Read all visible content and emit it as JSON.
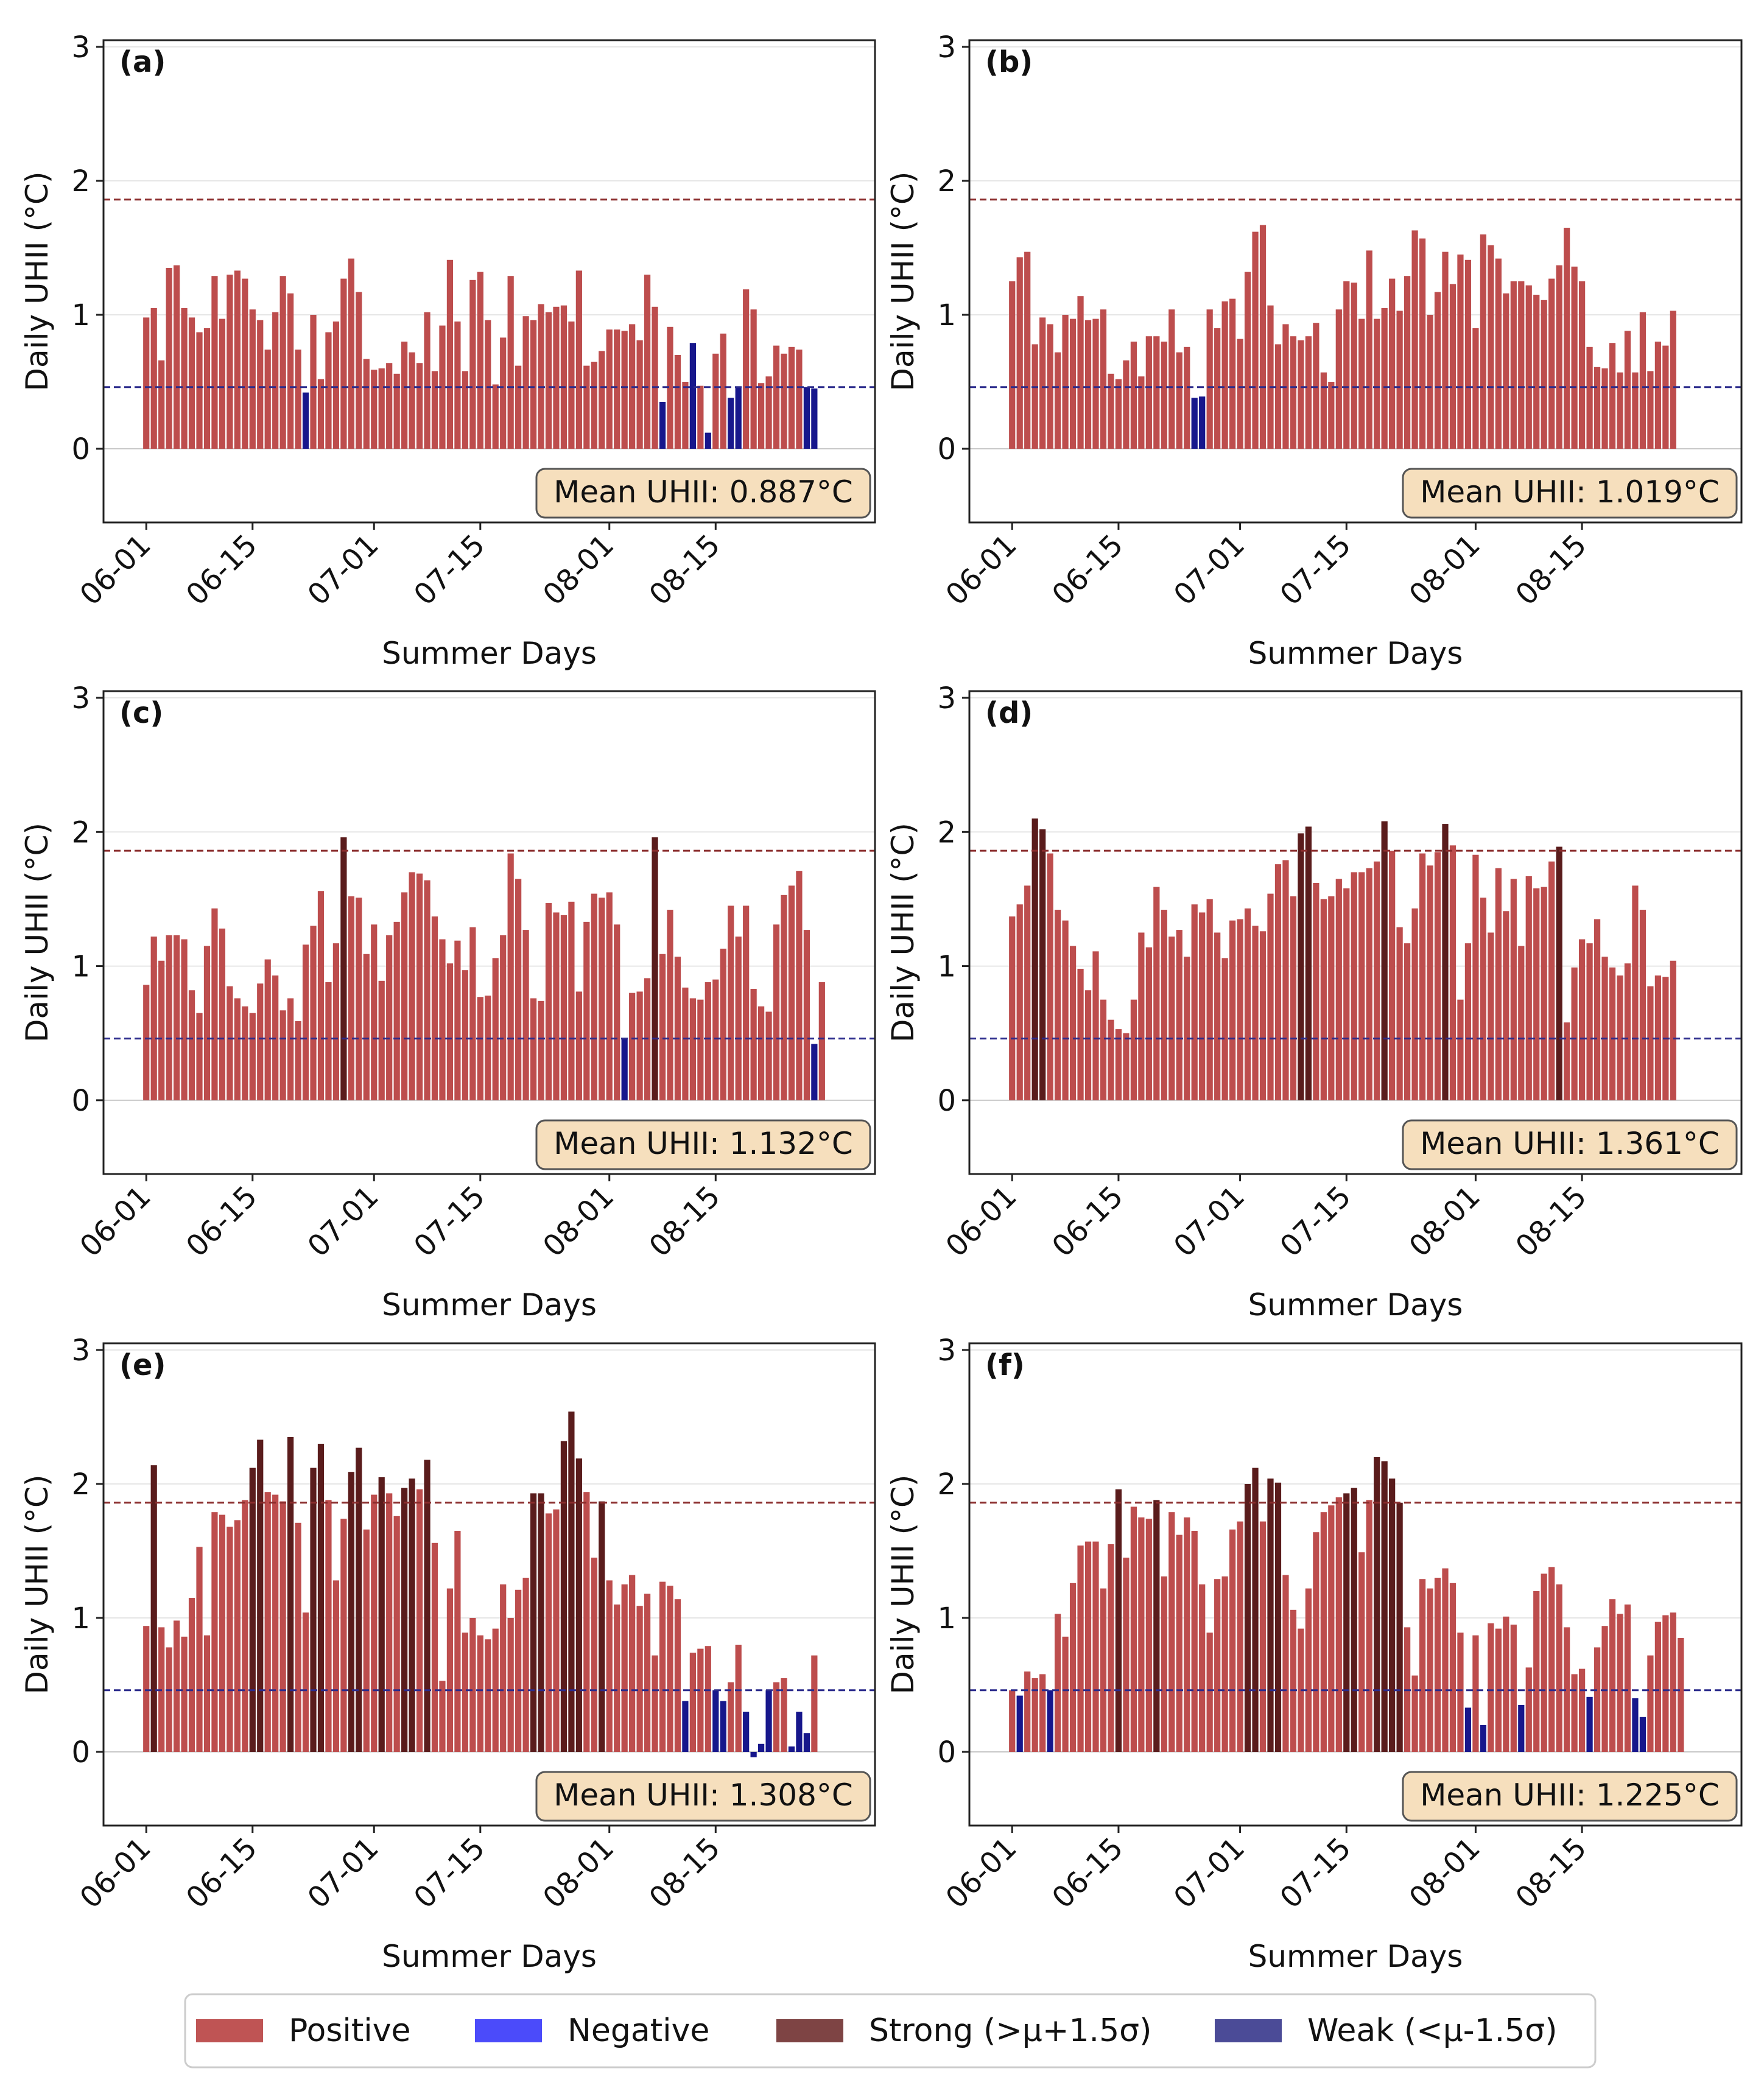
{
  "figure": {
    "legend": [
      {
        "label": "Positive",
        "color": "#bf5454"
      },
      {
        "label": "Negative",
        "color": "#4b4bfa"
      },
      {
        "label": "Strong (>μ+1.5σ)",
        "color": "#7e4444"
      },
      {
        "label": "Weak (<μ-1.5σ)",
        "color": "#4b4b97"
      }
    ],
    "colors": {
      "positive": "#bd4d4d",
      "strong": "#5a1c1c",
      "weak": "#17178c",
      "upper_line": "#8b2d2d",
      "lower_line": "#2b2b8c",
      "badge_fill": "#f6dfbd",
      "badge_stroke": "#555555"
    }
  },
  "chart_data": [
    {
      "type": "bar",
      "panel": "(a)",
      "xlabel": "Summer Days",
      "ylabel": "Daily UHII (°C)",
      "ylim": [
        -0.55,
        3.05
      ],
      "yticks": [
        0,
        1,
        2,
        3
      ],
      "xticks": [
        {
          "day": 0,
          "label": "06-01"
        },
        {
          "day": 14,
          "label": "06-15"
        },
        {
          "day": 30,
          "label": "07-01"
        },
        {
          "day": 44,
          "label": "07-15"
        },
        {
          "day": 61,
          "label": "08-01"
        },
        {
          "day": 75,
          "label": "08-15"
        }
      ],
      "upper_threshold": 1.86,
      "lower_threshold": 0.46,
      "annotation": "Mean UHII: 0.887°C",
      "values": [
        0.98,
        1.05,
        0.66,
        1.35,
        1.37,
        1.05,
        0.98,
        0.87,
        0.9,
        1.29,
        0.97,
        1.3,
        1.33,
        1.27,
        1.04,
        0.96,
        0.74,
        1.02,
        1.29,
        1.16,
        0.74,
        0.42,
        1.0,
        0.52,
        0.87,
        0.95,
        1.27,
        1.42,
        1.17,
        0.67,
        0.59,
        0.6,
        0.64,
        0.56,
        0.8,
        0.72,
        0.64,
        1.02,
        0.58,
        0.92,
        1.41,
        0.95,
        0.58,
        1.26,
        1.32,
        0.96,
        0.48,
        0.83,
        1.29,
        0.62,
        0.99,
        0.96,
        1.08,
        1.02,
        1.06,
        1.07,
        0.95,
        1.33,
        0.62,
        0.65,
        0.73,
        0.89,
        0.89,
        0.88,
        0.93,
        0.81,
        1.3,
        1.06,
        0.35,
        0.91,
        0.7,
        0.5,
        0.79,
        0.47,
        0.12,
        0.71,
        0.86,
        0.38,
        0.46,
        1.19,
        1.04,
        0.49,
        0.54,
        0.77,
        0.71,
        0.76,
        0.74,
        0.46,
        0.45
      ],
      "categories": [
        "p",
        "p",
        "p",
        "p",
        "p",
        "p",
        "p",
        "p",
        "p",
        "p",
        "p",
        "p",
        "p",
        "p",
        "p",
        "p",
        "p",
        "p",
        "p",
        "p",
        "p",
        "w",
        "p",
        "p",
        "p",
        "p",
        "p",
        "p",
        "p",
        "p",
        "p",
        "p",
        "p",
        "p",
        "p",
        "p",
        "p",
        "p",
        "p",
        "p",
        "p",
        "p",
        "p",
        "p",
        "p",
        "p",
        "p",
        "p",
        "p",
        "p",
        "p",
        "p",
        "p",
        "p",
        "p",
        "p",
        "p",
        "p",
        "p",
        "p",
        "p",
        "p",
        "p",
        "p",
        "p",
        "p",
        "p",
        "p",
        "w",
        "p",
        "p",
        "p",
        "w",
        "p",
        "w",
        "p",
        "p",
        "w",
        "w",
        "p",
        "p",
        "p",
        "p",
        "p",
        "p",
        "p",
        "p",
        "w",
        "w"
      ]
    },
    {
      "type": "bar",
      "panel": "(b)",
      "xlabel": "Summer Days",
      "ylabel": "Daily UHII (°C)",
      "ylim": [
        -0.55,
        3.05
      ],
      "yticks": [
        0,
        1,
        2,
        3
      ],
      "xticks": [
        {
          "day": 0,
          "label": "06-01"
        },
        {
          "day": 14,
          "label": "06-15"
        },
        {
          "day": 30,
          "label": "07-01"
        },
        {
          "day": 44,
          "label": "07-15"
        },
        {
          "day": 61,
          "label": "08-01"
        },
        {
          "day": 75,
          "label": "08-15"
        }
      ],
      "upper_threshold": 1.86,
      "lower_threshold": 0.46,
      "annotation": "Mean UHII: 1.019°C",
      "values": [
        1.25,
        1.43,
        1.47,
        0.78,
        0.98,
        0.93,
        0.72,
        1.0,
        0.97,
        1.14,
        0.96,
        0.97,
        1.04,
        0.56,
        0.52,
        0.66,
        0.8,
        0.54,
        0.84,
        0.84,
        0.8,
        1.04,
        0.72,
        0.76,
        0.38,
        0.39,
        1.04,
        0.9,
        1.1,
        1.12,
        0.82,
        1.32,
        1.62,
        1.67,
        1.07,
        0.78,
        0.93,
        0.84,
        0.81,
        0.84,
        0.94,
        0.57,
        0.5,
        1.04,
        1.25,
        1.24,
        0.97,
        1.48,
        0.97,
        1.05,
        1.27,
        1.03,
        1.29,
        1.63,
        1.57,
        1.0,
        1.17,
        1.47,
        1.23,
        1.45,
        1.41,
        0.9,
        1.6,
        1.52,
        1.42,
        1.16,
        1.25,
        1.25,
        1.22,
        1.15,
        1.11,
        1.27,
        1.37,
        1.65,
        1.36,
        1.25,
        0.76,
        0.61,
        0.6,
        0.79,
        0.57,
        0.88,
        0.57,
        1.02,
        0.58,
        0.8,
        0.77,
        1.03
      ],
      "categories": [
        "p",
        "p",
        "p",
        "p",
        "p",
        "p",
        "p",
        "p",
        "p",
        "p",
        "p",
        "p",
        "p",
        "p",
        "p",
        "p",
        "p",
        "p",
        "p",
        "p",
        "p",
        "p",
        "p",
        "p",
        "w",
        "w",
        "p",
        "p",
        "p",
        "p",
        "p",
        "p",
        "p",
        "p",
        "p",
        "p",
        "p",
        "p",
        "p",
        "p",
        "p",
        "p",
        "p",
        "p",
        "p",
        "p",
        "p",
        "p",
        "p",
        "p",
        "p",
        "p",
        "p",
        "p",
        "p",
        "p",
        "p",
        "p",
        "p",
        "p",
        "p",
        "p",
        "p",
        "p",
        "p",
        "p",
        "p",
        "p",
        "p",
        "p",
        "p",
        "p",
        "p",
        "p",
        "p",
        "p",
        "p",
        "p",
        "p",
        "p",
        "p",
        "p",
        "p",
        "p",
        "p",
        "p",
        "p",
        "p"
      ]
    },
    {
      "type": "bar",
      "panel": "(c)",
      "xlabel": "Summer Days",
      "ylabel": "Daily UHII (°C)",
      "ylim": [
        -0.55,
        3.05
      ],
      "yticks": [
        0,
        1,
        2,
        3
      ],
      "xticks": [
        {
          "day": 0,
          "label": "06-01"
        },
        {
          "day": 14,
          "label": "06-15"
        },
        {
          "day": 30,
          "label": "07-01"
        },
        {
          "day": 44,
          "label": "07-15"
        },
        {
          "day": 61,
          "label": "08-01"
        },
        {
          "day": 75,
          "label": "08-15"
        }
      ],
      "upper_threshold": 1.86,
      "lower_threshold": 0.46,
      "annotation": "Mean UHII: 1.132°C",
      "values": [
        0.86,
        1.22,
        1.04,
        1.23,
        1.23,
        1.2,
        0.82,
        0.65,
        1.15,
        1.43,
        1.28,
        0.85,
        0.76,
        0.7,
        0.65,
        0.87,
        1.05,
        0.93,
        0.67,
        0.76,
        0.59,
        1.16,
        1.3,
        1.56,
        0.88,
        1.17,
        1.96,
        1.52,
        1.51,
        1.09,
        1.31,
        0.89,
        1.23,
        1.33,
        1.55,
        1.7,
        1.69,
        1.64,
        1.37,
        1.2,
        1.02,
        1.19,
        0.97,
        1.29,
        0.77,
        0.78,
        1.06,
        1.23,
        1.84,
        1.65,
        1.27,
        0.76,
        0.74,
        1.47,
        1.4,
        1.38,
        1.48,
        0.81,
        1.33,
        1.54,
        1.51,
        1.55,
        1.31,
        0.46,
        0.8,
        0.81,
        0.91,
        1.96,
        1.09,
        1.42,
        1.07,
        0.84,
        0.76,
        0.75,
        0.88,
        0.9,
        1.13,
        1.45,
        1.22,
        1.45,
        0.83,
        0.7,
        0.66,
        1.31,
        1.53,
        1.6,
        1.71,
        1.27,
        0.42,
        0.88
      ],
      "categories": [
        "p",
        "p",
        "p",
        "p",
        "p",
        "p",
        "p",
        "p",
        "p",
        "p",
        "p",
        "p",
        "p",
        "p",
        "p",
        "p",
        "p",
        "p",
        "p",
        "p",
        "p",
        "p",
        "p",
        "p",
        "p",
        "p",
        "s",
        "p",
        "p",
        "p",
        "p",
        "p",
        "p",
        "p",
        "p",
        "p",
        "p",
        "p",
        "p",
        "p",
        "p",
        "p",
        "p",
        "p",
        "p",
        "p",
        "p",
        "p",
        "p",
        "p",
        "p",
        "p",
        "p",
        "p",
        "p",
        "p",
        "p",
        "p",
        "p",
        "p",
        "p",
        "p",
        "p",
        "w",
        "p",
        "p",
        "p",
        "s",
        "p",
        "p",
        "p",
        "p",
        "p",
        "p",
        "p",
        "p",
        "p",
        "p",
        "p",
        "p",
        "p",
        "p",
        "p",
        "p",
        "p",
        "p",
        "p",
        "p",
        "w",
        "p"
      ]
    },
    {
      "type": "bar",
      "panel": "(d)",
      "xlabel": "Summer Days",
      "ylabel": "Daily UHII (°C)",
      "ylim": [
        -0.55,
        3.05
      ],
      "yticks": [
        0,
        1,
        2,
        3
      ],
      "xticks": [
        {
          "day": 0,
          "label": "06-01"
        },
        {
          "day": 14,
          "label": "06-15"
        },
        {
          "day": 30,
          "label": "07-01"
        },
        {
          "day": 44,
          "label": "07-15"
        },
        {
          "day": 61,
          "label": "08-01"
        },
        {
          "day": 75,
          "label": "08-15"
        }
      ],
      "upper_threshold": 1.86,
      "lower_threshold": 0.46,
      "annotation": "Mean UHII: 1.361°C",
      "values": [
        1.37,
        1.46,
        1.6,
        2.1,
        2.02,
        1.84,
        1.42,
        1.34,
        1.15,
        0.98,
        0.82,
        1.11,
        0.75,
        0.6,
        0.53,
        0.5,
        0.75,
        1.25,
        1.14,
        1.59,
        1.42,
        1.22,
        1.27,
        1.07,
        1.46,
        1.4,
        1.5,
        1.25,
        1.06,
        1.34,
        1.35,
        1.43,
        1.3,
        1.26,
        1.54,
        1.76,
        1.79,
        1.52,
        1.99,
        2.04,
        1.62,
        1.5,
        1.52,
        1.65,
        1.58,
        1.7,
        1.7,
        1.73,
        1.78,
        2.08,
        1.86,
        1.29,
        1.17,
        1.43,
        1.84,
        1.75,
        1.85,
        2.06,
        1.9,
        0.75,
        1.17,
        1.83,
        1.51,
        1.25,
        1.73,
        1.41,
        1.65,
        1.15,
        1.67,
        1.58,
        1.59,
        1.78,
        1.89,
        0.58,
        0.99,
        1.2,
        1.17,
        1.35,
        1.07,
        0.99,
        0.93,
        1.02,
        1.6,
        1.42,
        0.85,
        0.93,
        0.92,
        1.04
      ],
      "categories": [
        "p",
        "p",
        "p",
        "s",
        "s",
        "p",
        "p",
        "p",
        "p",
        "p",
        "p",
        "p",
        "p",
        "p",
        "p",
        "p",
        "p",
        "p",
        "p",
        "p",
        "p",
        "p",
        "p",
        "p",
        "p",
        "p",
        "p",
        "p",
        "p",
        "p",
        "p",
        "p",
        "p",
        "p",
        "p",
        "p",
        "p",
        "p",
        "s",
        "s",
        "p",
        "p",
        "p",
        "p",
        "p",
        "p",
        "p",
        "p",
        "p",
        "s",
        "p",
        "p",
        "p",
        "p",
        "p",
        "p",
        "p",
        "s",
        "p",
        "p",
        "p",
        "p",
        "p",
        "p",
        "p",
        "p",
        "p",
        "p",
        "p",
        "p",
        "p",
        "p",
        "s",
        "p",
        "p",
        "p",
        "p",
        "p",
        "p",
        "p",
        "p",
        "p",
        "p",
        "p",
        "p",
        "p",
        "p",
        "p"
      ]
    },
    {
      "type": "bar",
      "panel": "(e)",
      "xlabel": "Summer Days",
      "ylabel": "Daily UHII (°C)",
      "ylim": [
        -0.55,
        3.05
      ],
      "yticks": [
        0,
        1,
        2,
        3
      ],
      "xticks": [
        {
          "day": 0,
          "label": "06-01"
        },
        {
          "day": 14,
          "label": "06-15"
        },
        {
          "day": 30,
          "label": "07-01"
        },
        {
          "day": 44,
          "label": "07-15"
        },
        {
          "day": 61,
          "label": "08-01"
        },
        {
          "day": 75,
          "label": "08-15"
        }
      ],
      "upper_threshold": 1.86,
      "lower_threshold": 0.46,
      "annotation": "Mean UHII: 1.308°C",
      "values": [
        0.94,
        2.14,
        0.93,
        0.78,
        0.98,
        0.86,
        1.15,
        1.53,
        0.87,
        1.79,
        1.77,
        1.68,
        1.73,
        1.88,
        2.12,
        2.33,
        1.94,
        1.92,
        1.87,
        2.35,
        1.71,
        1.04,
        2.12,
        2.3,
        1.88,
        1.28,
        1.74,
        2.09,
        2.27,
        1.66,
        1.92,
        2.05,
        1.93,
        1.76,
        1.97,
        2.04,
        1.96,
        2.18,
        1.56,
        0.53,
        1.22,
        1.65,
        0.89,
        1.0,
        0.87,
        0.84,
        0.92,
        1.25,
        1.0,
        1.21,
        1.3,
        1.93,
        1.93,
        1.78,
        1.81,
        2.32,
        2.54,
        2.19,
        1.94,
        1.45,
        1.87,
        1.28,
        1.1,
        1.25,
        1.32,
        1.09,
        1.18,
        0.72,
        1.27,
        1.24,
        1.14,
        0.38,
        0.74,
        0.77,
        0.79,
        0.46,
        0.38,
        0.52,
        0.8,
        0.3,
        -0.04,
        0.06,
        0.46,
        0.52,
        0.55,
        0.04,
        0.3,
        0.14,
        0.72
      ],
      "categories": [
        "p",
        "s",
        "p",
        "p",
        "p",
        "p",
        "p",
        "p",
        "p",
        "p",
        "p",
        "p",
        "p",
        "p",
        "s",
        "s",
        "p",
        "p",
        "p",
        "s",
        "p",
        "p",
        "s",
        "s",
        "p",
        "p",
        "p",
        "s",
        "s",
        "p",
        "p",
        "s",
        "p",
        "p",
        "s",
        "s",
        "p",
        "s",
        "p",
        "p",
        "p",
        "p",
        "p",
        "p",
        "p",
        "p",
        "p",
        "p",
        "p",
        "p",
        "p",
        "s",
        "s",
        "p",
        "p",
        "s",
        "s",
        "s",
        "p",
        "p",
        "s",
        "p",
        "p",
        "p",
        "p",
        "p",
        "p",
        "p",
        "p",
        "p",
        "p",
        "w",
        "p",
        "p",
        "p",
        "w",
        "w",
        "p",
        "p",
        "w",
        "w",
        "w",
        "w",
        "p",
        "p",
        "w",
        "w",
        "w",
        "p"
      ]
    },
    {
      "type": "bar",
      "panel": "(f)",
      "xlabel": "Summer Days",
      "ylabel": "Daily UHII (°C)",
      "ylim": [
        -0.55,
        3.05
      ],
      "yticks": [
        0,
        1,
        2,
        3
      ],
      "xticks": [
        {
          "day": 0,
          "label": "06-01"
        },
        {
          "day": 14,
          "label": "06-15"
        },
        {
          "day": 30,
          "label": "07-01"
        },
        {
          "day": 44,
          "label": "07-15"
        },
        {
          "day": 61,
          "label": "08-01"
        },
        {
          "day": 75,
          "label": "08-15"
        }
      ],
      "upper_threshold": 1.86,
      "lower_threshold": 0.46,
      "annotation": "Mean UHII: 1.225°C",
      "values": [
        0.46,
        0.42,
        0.6,
        0.55,
        0.58,
        0.46,
        1.03,
        0.86,
        1.26,
        1.54,
        1.57,
        1.57,
        1.22,
        1.55,
        1.96,
        1.45,
        1.83,
        1.75,
        1.74,
        1.88,
        1.31,
        1.79,
        1.62,
        1.75,
        1.65,
        1.25,
        0.89,
        1.29,
        1.31,
        1.66,
        1.72,
        2.0,
        2.12,
        1.72,
        2.04,
        2.01,
        1.32,
        1.06,
        0.92,
        1.22,
        1.64,
        1.79,
        1.84,
        1.9,
        1.93,
        1.97,
        1.49,
        1.88,
        2.2,
        2.17,
        2.04,
        1.86,
        0.93,
        0.57,
        1.29,
        1.22,
        1.3,
        1.37,
        1.26,
        0.89,
        0.33,
        0.87,
        0.2,
        0.96,
        0.92,
        1.01,
        0.95,
        0.35,
        0.63,
        1.2,
        1.33,
        1.38,
        1.25,
        0.93,
        0.58,
        0.62,
        0.41,
        0.78,
        0.94,
        1.14,
        1.03,
        1.1,
        0.4,
        0.26,
        0.72,
        0.97,
        1.02,
        1.04,
        0.85
      ],
      "categories": [
        "p",
        "w",
        "p",
        "p",
        "p",
        "w",
        "p",
        "p",
        "p",
        "p",
        "p",
        "p",
        "p",
        "p",
        "s",
        "p",
        "p",
        "p",
        "p",
        "s",
        "p",
        "p",
        "p",
        "p",
        "p",
        "p",
        "p",
        "p",
        "p",
        "p",
        "p",
        "s",
        "s",
        "p",
        "s",
        "s",
        "p",
        "p",
        "p",
        "p",
        "p",
        "p",
        "p",
        "p",
        "s",
        "s",
        "p",
        "p",
        "s",
        "s",
        "s",
        "s",
        "p",
        "p",
        "p",
        "p",
        "p",
        "p",
        "p",
        "p",
        "w",
        "p",
        "w",
        "p",
        "p",
        "p",
        "p",
        "w",
        "p",
        "p",
        "p",
        "p",
        "p",
        "p",
        "p",
        "p",
        "w",
        "p",
        "p",
        "p",
        "p",
        "p",
        "w",
        "w",
        "p",
        "p",
        "p",
        "p",
        "p"
      ]
    }
  ]
}
